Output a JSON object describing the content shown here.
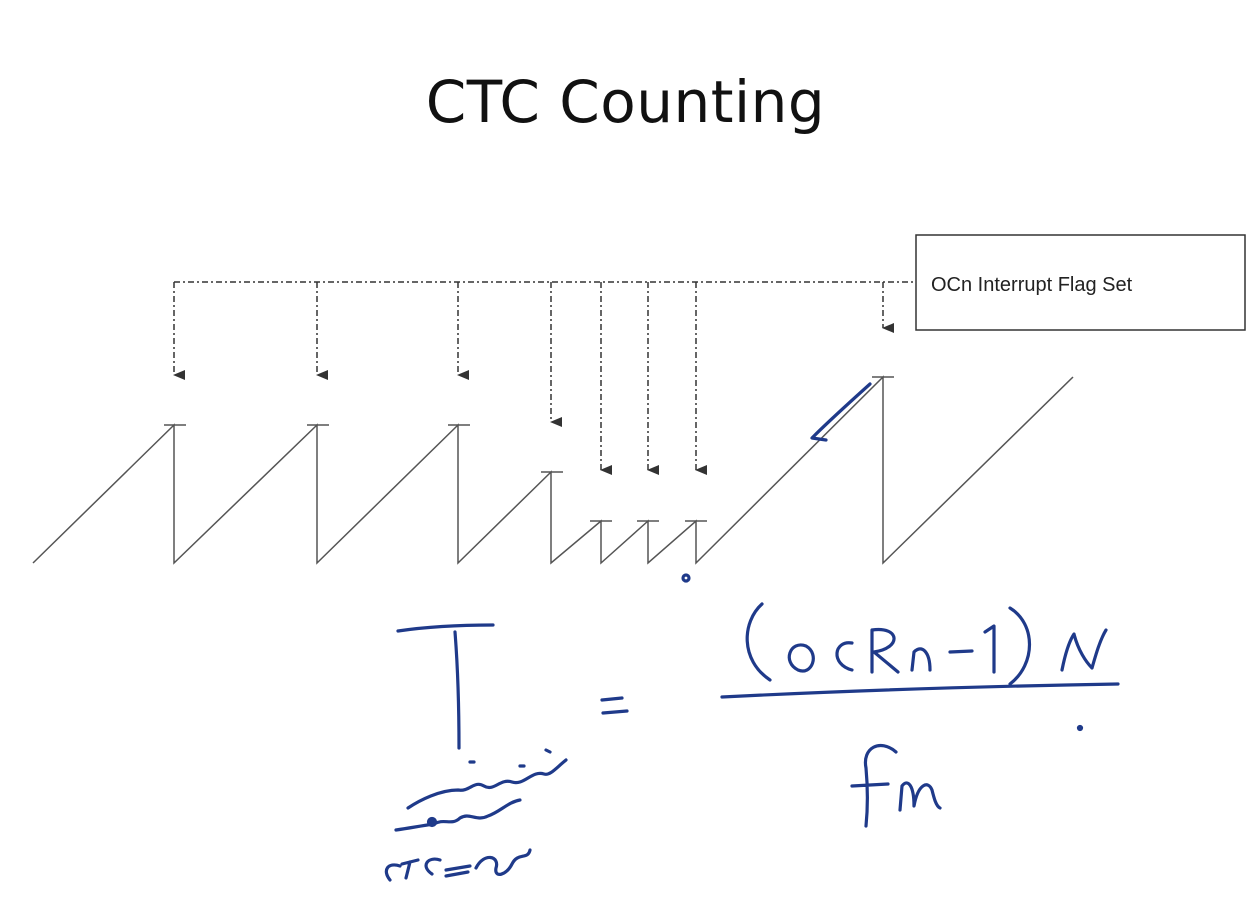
{
  "slide": {
    "title": "CTC Counting"
  },
  "diagram": {
    "flag_box_label": "OCn Interrupt Flag Set",
    "line_color": "#555555",
    "ink_color": "#1f3a8a"
  }
}
